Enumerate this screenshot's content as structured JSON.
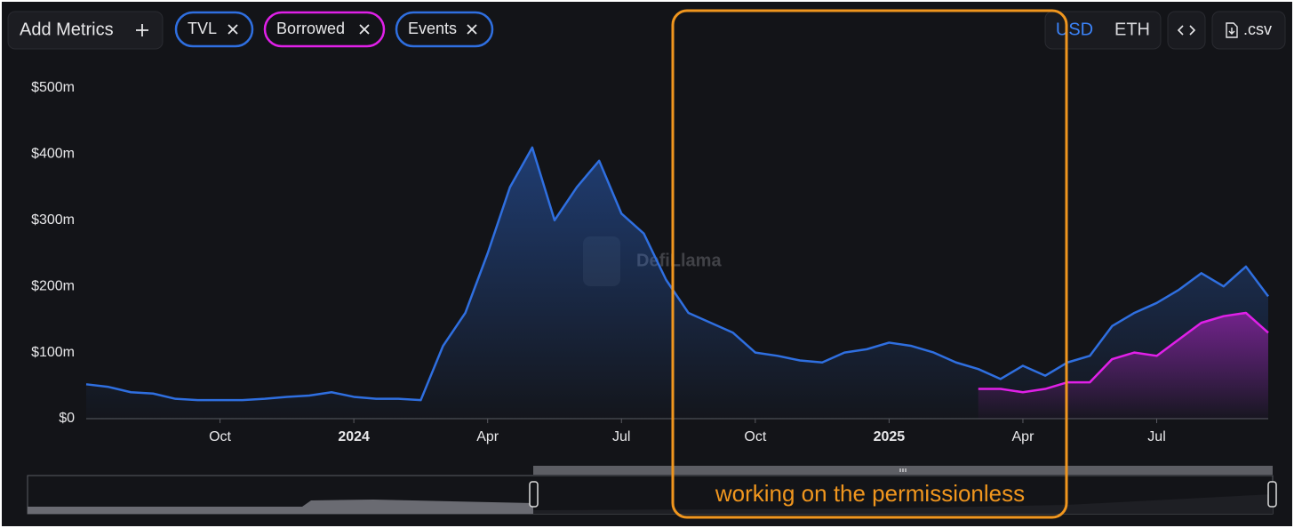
{
  "toolbar": {
    "add_metrics": "Add Metrics",
    "extra_chip": "Events",
    "currencies": [
      "USD",
      "ETH"
    ],
    "csv": ".csv"
  },
  "watermark": "DefiLlama",
  "annotation": "working on the permissionless",
  "chart_data": {
    "type": "line",
    "area": true,
    "categories": [
      null,
      null,
      null,
      null,
      null,
      null,
      "Oct",
      null,
      null,
      null,
      null,
      null,
      "2024",
      null,
      null,
      null,
      null,
      null,
      "Apr",
      null,
      null,
      null,
      null,
      null,
      "Jul",
      null,
      null,
      null,
      null,
      null,
      "Oct",
      null,
      null,
      null,
      null,
      null,
      "2025",
      null,
      null,
      null,
      null,
      null,
      "Apr",
      null,
      null,
      null,
      null,
      null,
      "Jul",
      null,
      null,
      null,
      null,
      null
    ],
    "series": [
      {
        "name": "TVL",
        "color": "#2f6fe0",
        "values": [
          52,
          48,
          40,
          38,
          30,
          28,
          28,
          28,
          30,
          33,
          35,
          40,
          33,
          30,
          30,
          28,
          110,
          160,
          250,
          350,
          410,
          300,
          350,
          390,
          310,
          280,
          210,
          160,
          145,
          130,
          100,
          95,
          88,
          85,
          100,
          105,
          115,
          110,
          100,
          85,
          75,
          60,
          80,
          65,
          85,
          95,
          140,
          160,
          175,
          195,
          220,
          200,
          230,
          185
        ]
      },
      {
        "name": "Borrowed",
        "color": "#e020e8",
        "values": [
          null,
          null,
          null,
          null,
          null,
          null,
          null,
          null,
          null,
          null,
          null,
          null,
          null,
          null,
          null,
          null,
          null,
          null,
          null,
          null,
          null,
          null,
          null,
          null,
          null,
          null,
          null,
          null,
          null,
          null,
          null,
          null,
          null,
          null,
          null,
          null,
          null,
          null,
          null,
          null,
          45,
          45,
          40,
          45,
          55,
          55,
          90,
          100,
          95,
          120,
          145,
          155,
          160,
          130
        ]
      }
    ],
    "ylim": [
      0,
      500
    ],
    "yticks": [
      {
        "value": 0,
        "label": "$0"
      },
      {
        "value": 100,
        "label": "$100m"
      },
      {
        "value": 200,
        "label": "$200m"
      },
      {
        "value": 300,
        "label": "$300m"
      },
      {
        "value": 400,
        "label": "$400m"
      },
      {
        "value": 500,
        "label": "$500m"
      }
    ]
  }
}
